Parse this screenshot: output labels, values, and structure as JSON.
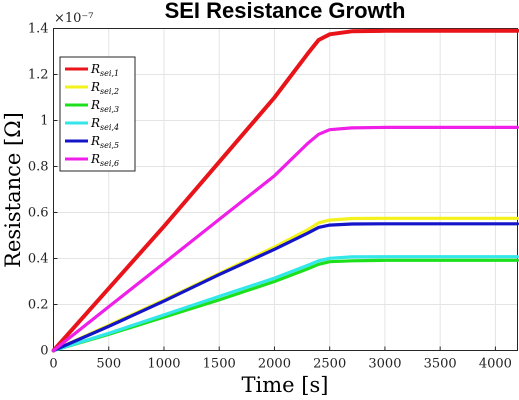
{
  "chart_data": {
    "type": "line",
    "title": "SEI Resistance Growth",
    "xlabel": "Time [s]",
    "ylabel": "Resistance [Ω]",
    "y_exponent_label": "×10⁻⁷",
    "xlim": [
      0,
      4200
    ],
    "ylim": [
      0,
      1.4
    ],
    "x_ticks": [
      0,
      500,
      1000,
      1500,
      2000,
      2500,
      3000,
      3500,
      4000
    ],
    "y_ticks": [
      0,
      0.2,
      0.4,
      0.6,
      0.8,
      1.0,
      1.2,
      1.4
    ],
    "y_tick_labels": [
      "0",
      "0.2",
      "0.4",
      "0.6",
      "0.8",
      "1",
      "1.2",
      "1.4"
    ],
    "grid": true,
    "legend_placement": "top-left",
    "series": [
      {
        "name": "R",
        "subscript": "sei,1",
        "color": "#e8141a",
        "x": [
          0,
          500,
          1000,
          1500,
          2000,
          2300,
          2400,
          2500,
          2700,
          3000,
          3500,
          4200
        ],
        "y": [
          0,
          0.27,
          0.54,
          0.82,
          1.1,
          1.29,
          1.35,
          1.375,
          1.388,
          1.39,
          1.39,
          1.39
        ]
      },
      {
        "name": "R",
        "subscript": "sei,2",
        "color": "#f4f21c",
        "x": [
          0,
          500,
          1000,
          1500,
          2000,
          2300,
          2400,
          2500,
          2700,
          3000,
          3500,
          4200
        ],
        "y": [
          0,
          0.11,
          0.22,
          0.335,
          0.45,
          0.525,
          0.555,
          0.567,
          0.574,
          0.575,
          0.575,
          0.575
        ]
      },
      {
        "name": "R",
        "subscript": "sei,3",
        "color": "#1de01d",
        "x": [
          0,
          500,
          1000,
          1500,
          2000,
          2300,
          2400,
          2500,
          2700,
          3000,
          3500,
          4200
        ],
        "y": [
          0,
          0.07,
          0.145,
          0.22,
          0.3,
          0.355,
          0.375,
          0.386,
          0.39,
          0.392,
          0.392,
          0.392
        ]
      },
      {
        "name": "R",
        "subscript": "sei,4",
        "color": "#33e6ea",
        "x": [
          0,
          500,
          1000,
          1500,
          2000,
          2300,
          2400,
          2500,
          2700,
          3000,
          3500,
          4200
        ],
        "y": [
          0,
          0.075,
          0.155,
          0.235,
          0.315,
          0.37,
          0.39,
          0.401,
          0.407,
          0.408,
          0.408,
          0.408
        ]
      },
      {
        "name": "R",
        "subscript": "sei,5",
        "color": "#1414c8",
        "x": [
          0,
          500,
          1000,
          1500,
          2000,
          2300,
          2400,
          2500,
          2700,
          3000,
          3500,
          4200
        ],
        "y": [
          0,
          0.105,
          0.215,
          0.33,
          0.44,
          0.51,
          0.535,
          0.545,
          0.55,
          0.551,
          0.551,
          0.551
        ]
      },
      {
        "name": "R",
        "subscript": "sei,6",
        "color": "#ef1ee8",
        "x": [
          0,
          500,
          1000,
          1500,
          2000,
          2300,
          2400,
          2500,
          2700,
          3000,
          3500,
          4200
        ],
        "y": [
          0,
          0.19,
          0.38,
          0.57,
          0.76,
          0.9,
          0.94,
          0.96,
          0.968,
          0.97,
          0.97,
          0.97
        ]
      }
    ]
  }
}
